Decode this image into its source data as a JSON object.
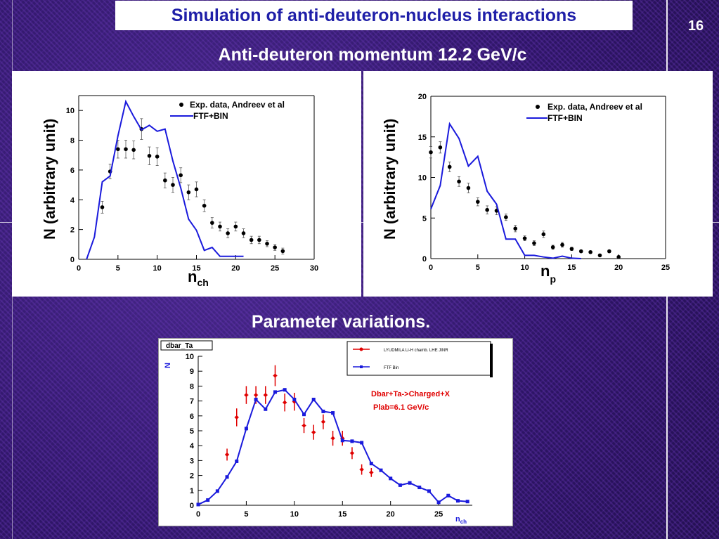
{
  "slide": {
    "title": "Simulation of anti-deuteron-nucleus interactions",
    "page_number": "16",
    "subtitle": "Anti-deuteron momentum 12.2 GeV/c",
    "section_heading": "Parameter variations."
  },
  "colors": {
    "title_text": "#1f1fa8",
    "data_marker": "#000000",
    "model_line": "#1a1adc",
    "red_data": "#e00000",
    "annotation": "#e00000"
  },
  "chart_data": [
    {
      "type": "line",
      "title": "",
      "xlabel_main": "n",
      "xlabel_sub": "ch",
      "ylabel": "N (arbitrary unit)",
      "xlim": [
        0,
        30
      ],
      "ylim": [
        0,
        11
      ],
      "xticks": [
        0,
        5,
        10,
        15,
        20,
        25,
        30
      ],
      "yticks": [
        0,
        2,
        4,
        6,
        8,
        10
      ],
      "legend": {
        "placement": "top-right",
        "data_label": "Exp. data, Andreev et al",
        "model_label": "FTF+BIN"
      },
      "series": [
        {
          "name": "Exp. data, Andreev et al",
          "kind": "points",
          "x": [
            3,
            4,
            5,
            6,
            7,
            8,
            9,
            10,
            11,
            12,
            13,
            14,
            15,
            16,
            17,
            18,
            19,
            20,
            21,
            22,
            23,
            24,
            25,
            26
          ],
          "y": [
            3.5,
            5.9,
            7.4,
            7.4,
            7.35,
            8.75,
            6.95,
            6.9,
            5.3,
            5.0,
            5.65,
            4.5,
            4.7,
            3.6,
            2.45,
            2.2,
            1.75,
            2.2,
            1.75,
            1.3,
            1.3,
            1.05,
            0.8,
            0.55
          ],
          "err": [
            0.4,
            0.5,
            0.6,
            0.6,
            0.6,
            0.7,
            0.6,
            0.6,
            0.5,
            0.5,
            0.5,
            0.5,
            0.5,
            0.4,
            0.35,
            0.3,
            0.3,
            0.3,
            0.3,
            0.25,
            0.25,
            0.2,
            0.2,
            0.2
          ]
        },
        {
          "name": "FTF+BIN",
          "kind": "line",
          "x": [
            1,
            2,
            3,
            4,
            5,
            6,
            7,
            8,
            9,
            10,
            11,
            12,
            13,
            14,
            15,
            16,
            17,
            18,
            19,
            20,
            21
          ],
          "y": [
            0,
            1.5,
            5.2,
            5.6,
            8.3,
            10.6,
            9.6,
            8.7,
            9.0,
            8.6,
            8.75,
            6.6,
            4.8,
            2.7,
            1.95,
            0.6,
            0.8,
            0.2,
            0.2,
            0.2,
            0.2
          ]
        }
      ]
    },
    {
      "type": "line",
      "title": "",
      "xlabel_main": "n",
      "xlabel_sub": "p",
      "ylabel": "N (arbitrary unit)",
      "xlim": [
        0,
        25
      ],
      "ylim": [
        0,
        20
      ],
      "xticks": [
        0,
        5,
        10,
        15,
        20,
        25
      ],
      "yticks": [
        0,
        5,
        10,
        15,
        20
      ],
      "legend": {
        "placement": "top-right",
        "data_label": "Exp. data, Andreev et al",
        "model_label": "FTF+BIN"
      },
      "series": [
        {
          "name": "Exp. data, Andreev et al",
          "kind": "points",
          "x": [
            0,
            1,
            2,
            3,
            4,
            5,
            6,
            7,
            8,
            9,
            10,
            11,
            12,
            13,
            14,
            15,
            16,
            17,
            18,
            19,
            20
          ],
          "y": [
            13.1,
            13.7,
            11.3,
            9.5,
            8.7,
            7.0,
            6.0,
            5.9,
            5.1,
            3.7,
            2.5,
            1.9,
            3.0,
            1.4,
            1.7,
            1.2,
            0.9,
            0.8,
            0.4,
            0.9,
            0.2
          ],
          "err": [
            0.7,
            0.7,
            0.6,
            0.6,
            0.6,
            0.5,
            0.5,
            0.5,
            0.4,
            0.4,
            0.3,
            0.3,
            0.4,
            0.25,
            0.3,
            0.2,
            0.15,
            0.15,
            0.1,
            0.15,
            0.1
          ]
        },
        {
          "name": "FTF+BIN",
          "kind": "line",
          "x": [
            0,
            1,
            2,
            3,
            4,
            5,
            6,
            7,
            8,
            9,
            10,
            11,
            12,
            13,
            14,
            15,
            16
          ],
          "y": [
            6.1,
            9.0,
            16.6,
            14.8,
            11.4,
            12.6,
            8.3,
            6.7,
            2.4,
            2.4,
            0.4,
            0.4,
            0.2,
            0.05,
            0.3,
            0.05,
            0.0
          ]
        }
      ]
    },
    {
      "type": "line",
      "title": "dbar_Ta",
      "xlabel_main": "n",
      "xlabel_sub": "ch",
      "ylabel": "N",
      "xlim": [
        0,
        28.5
      ],
      "ylim": [
        0,
        10
      ],
      "xticks": [
        0,
        5,
        10,
        15,
        20,
        25
      ],
      "yticks": [
        0,
        1,
        2,
        3,
        4,
        5,
        6,
        7,
        8,
        9,
        10
      ],
      "legend": {
        "placement": "top-right",
        "data_label": "LYUDMILA Li-H chamb. LHE JINR",
        "model_label": "FTF Bin"
      },
      "annotations": [
        "Dbar+Ta->Charged+X",
        "Plab=6.1 GeV/c"
      ],
      "series": [
        {
          "name": "LYUDMILA Li-H chamb. LHE JINR",
          "kind": "points",
          "x": [
            3,
            4,
            5,
            6,
            7,
            8,
            9,
            10,
            11,
            12,
            13,
            14,
            15,
            16,
            17,
            18
          ],
          "y": [
            3.4,
            5.9,
            7.4,
            7.4,
            7.4,
            8.7,
            6.9,
            6.95,
            5.35,
            4.9,
            5.6,
            4.5,
            4.5,
            3.5,
            2.4,
            2.2
          ],
          "err": [
            0.4,
            0.6,
            0.6,
            0.6,
            0.6,
            0.7,
            0.6,
            0.6,
            0.5,
            0.5,
            0.5,
            0.5,
            0.5,
            0.4,
            0.35,
            0.3
          ]
        },
        {
          "name": "FTF Bin",
          "kind": "line",
          "x": [
            0,
            1,
            2,
            3,
            4,
            5,
            6,
            7,
            8,
            9,
            10,
            11,
            12,
            13,
            14,
            15,
            16,
            17,
            18,
            19,
            20,
            21,
            22,
            23,
            24,
            25,
            26,
            27,
            28
          ],
          "y": [
            0.05,
            0.35,
            0.95,
            1.9,
            2.95,
            5.15,
            7.1,
            6.45,
            7.6,
            7.75,
            7.1,
            6.1,
            7.1,
            6.3,
            6.2,
            4.35,
            4.3,
            4.2,
            2.8,
            2.35,
            1.8,
            1.35,
            1.5,
            1.2,
            0.95,
            0.2,
            0.65,
            0.3,
            0.25
          ]
        }
      ]
    }
  ]
}
